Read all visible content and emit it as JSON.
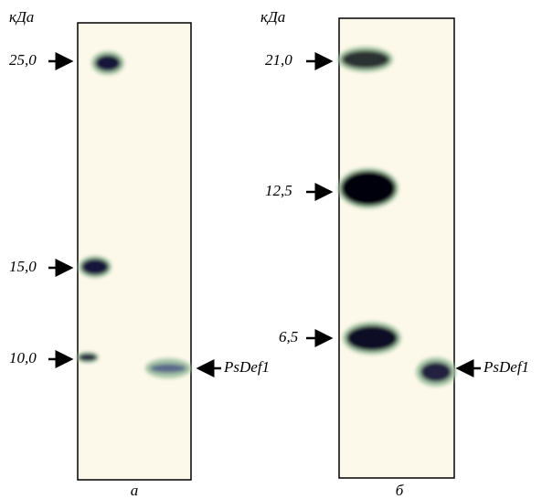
{
  "panels": [
    {
      "unit": "кДа",
      "markers": [
        "25,0",
        "15,0",
        "10,0"
      ],
      "target": "PsDef1",
      "caption": "а"
    },
    {
      "unit": "кДа",
      "markers": [
        "21,0",
        "12,5",
        "6,5"
      ],
      "target": "PsDef1",
      "caption": "б"
    }
  ]
}
